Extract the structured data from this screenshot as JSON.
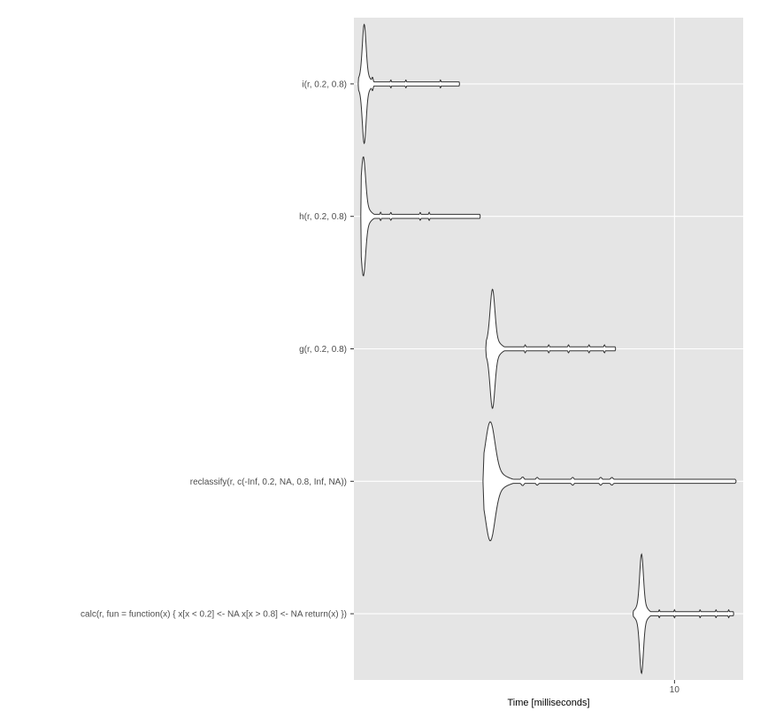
{
  "chart_data": {
    "type": "violin",
    "orientation": "horizontal",
    "xlabel": "Time [milliseconds]",
    "x_scale": "log10",
    "xlim": [
      3.4,
      12.6
    ],
    "x_ticks": [
      {
        "value": 10,
        "label": "10"
      }
    ],
    "grid": true,
    "legend": "none",
    "categories": [
      "i(r, 0.2, 0.8)",
      "h(r, 0.2, 0.8)",
      "g(r, 0.2, 0.8)",
      "reclassify(r, c(-Inf, 0.2, NA, 0.8, Inf, NA))",
      "calc(r, fun = function(x) {     x[x < 0.2] <- NA     x[x > 0.8] <- NA     return(x) })"
    ],
    "series": [
      {
        "min": 3.45,
        "mode": 3.52,
        "max": 4.85,
        "small_modes": [
          3.62,
          3.85,
          4.05,
          4.55
        ]
      },
      {
        "min": 3.48,
        "mode": 3.51,
        "max": 5.2,
        "small_modes": [
          3.72,
          3.85,
          4.25,
          4.38
        ]
      },
      {
        "min": 5.3,
        "mode": 5.42,
        "max": 8.2,
        "small_modes": [
          6.05,
          6.55,
          7.0,
          7.5,
          7.9
        ]
      },
      {
        "min": 5.25,
        "mode": 5.38,
        "max": 12.3,
        "small_modes": [
          6.0,
          6.3,
          7.1,
          7.8,
          8.1
        ]
      },
      {
        "min": 8.7,
        "mode": 8.95,
        "max": 12.2,
        "small_modes": [
          9.5,
          10.0,
          10.9,
          11.5,
          12.0
        ]
      }
    ]
  },
  "colors": {
    "panel_background": "#e5e5e5",
    "grid_line": "#ffffff",
    "violin_fill": "#ffffff",
    "violin_stroke": "#333333",
    "tick_label": "#4d4d4d"
  }
}
